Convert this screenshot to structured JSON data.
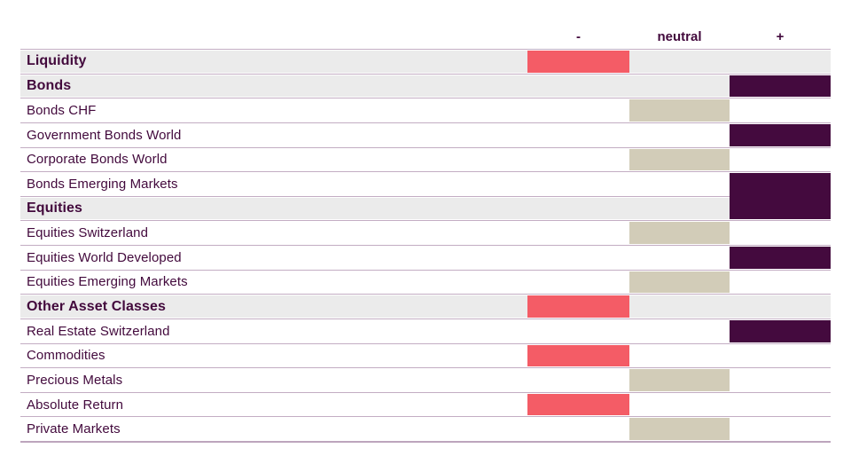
{
  "colors": {
    "minus": "#f45c66",
    "neutral": "#d2ccb8",
    "plus": "#440a3e",
    "category_bg": "#ebebeb",
    "separator": "#c3adc3",
    "bottom_border": "#bda5bd",
    "text": "#42093c"
  },
  "column_headers": [
    {
      "id": "minus",
      "label": "-"
    },
    {
      "id": "neutral",
      "label": "neutral"
    },
    {
      "id": "plus",
      "label": "+"
    }
  ],
  "rows": [
    {
      "label": "Liquidity",
      "category": true,
      "position": "minus"
    },
    {
      "label": "Bonds",
      "category": true,
      "position": "plus"
    },
    {
      "label": "Bonds CHF",
      "category": false,
      "position": "neutral"
    },
    {
      "label": "Government Bonds World",
      "category": false,
      "position": "plus"
    },
    {
      "label": "Corporate Bonds World",
      "category": false,
      "position": "neutral"
    },
    {
      "label": "Bonds Emerging Markets",
      "category": false,
      "position": "plus"
    },
    {
      "label": "Equities",
      "category": true,
      "position": "plus"
    },
    {
      "label": "Equities Switzerland",
      "category": false,
      "position": "neutral"
    },
    {
      "label": "Equities World Developed",
      "category": false,
      "position": "plus"
    },
    {
      "label": "Equities Emerging Markets",
      "category": false,
      "position": "neutral"
    },
    {
      "label": "Other Asset Classes",
      "category": true,
      "position": "minus"
    },
    {
      "label": "Real Estate Switzerland",
      "category": false,
      "position": "plus"
    },
    {
      "label": "Commodities",
      "category": false,
      "position": "minus"
    },
    {
      "label": "Precious Metals",
      "category": false,
      "position": "neutral"
    },
    {
      "label": "Absolute Return",
      "category": false,
      "position": "minus"
    },
    {
      "label": "Private Markets",
      "category": false,
      "position": "neutral"
    }
  ],
  "chart_data": {
    "type": "table",
    "columns": [
      "-",
      "neutral",
      "+"
    ],
    "rows": [
      {
        "label": "Liquidity",
        "group": true,
        "position": "-"
      },
      {
        "label": "Bonds",
        "group": true,
        "position": "+"
      },
      {
        "label": "Bonds CHF",
        "group": false,
        "position": "neutral"
      },
      {
        "label": "Government Bonds World",
        "group": false,
        "position": "+"
      },
      {
        "label": "Corporate Bonds World",
        "group": false,
        "position": "neutral"
      },
      {
        "label": "Bonds Emerging Markets",
        "group": false,
        "position": "+"
      },
      {
        "label": "Equities",
        "group": true,
        "position": "+"
      },
      {
        "label": "Equities Switzerland",
        "group": false,
        "position": "neutral"
      },
      {
        "label": "Equities World Developed",
        "group": false,
        "position": "+"
      },
      {
        "label": "Equities Emerging Markets",
        "group": false,
        "position": "neutral"
      },
      {
        "label": "Other Asset Classes",
        "group": true,
        "position": "-"
      },
      {
        "label": "Real Estate Switzerland",
        "group": false,
        "position": "+"
      },
      {
        "label": "Commodities",
        "group": false,
        "position": "-"
      },
      {
        "label": "Precious Metals",
        "group": false,
        "position": "neutral"
      },
      {
        "label": "Absolute Return",
        "group": false,
        "position": "-"
      },
      {
        "label": "Private Markets",
        "group": false,
        "position": "neutral"
      }
    ],
    "cell_colors": {
      "-": "#f45c66",
      "neutral": "#d2ccb8",
      "+": "#440a3e"
    },
    "layout": {
      "column_header_position": "top",
      "grid": "horizontal-separators"
    }
  }
}
